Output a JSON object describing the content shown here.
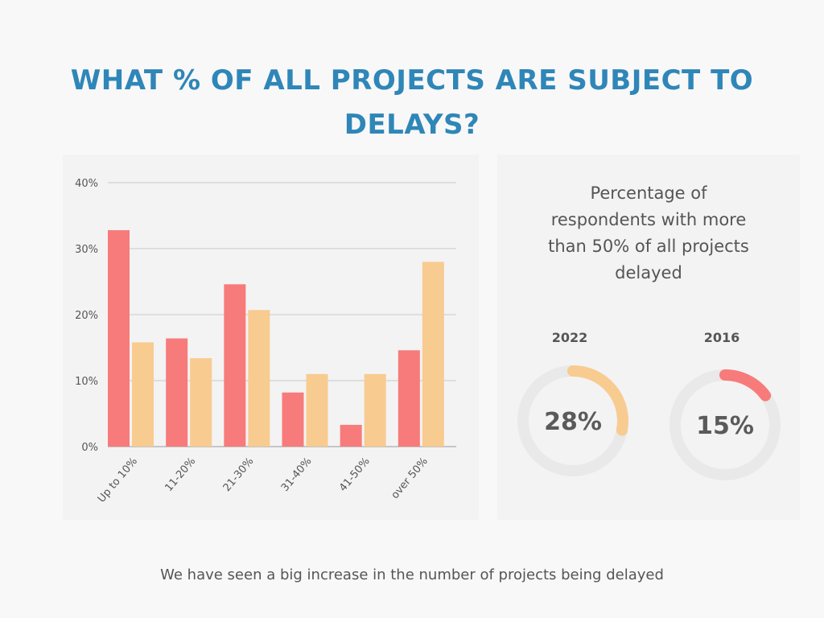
{
  "title": "What % of all projects are subject to delays?",
  "footer": "We have seen a big increase in the number of projects being delayed",
  "colors": {
    "title": "#2f86b8",
    "bar_red": "#f77b7b",
    "bar_orange": "#f8cb91",
    "ring_track": "#e9e9e9",
    "text": "#555555"
  },
  "chart_data": [
    {
      "type": "bar",
      "categories": [
        "Up to 10%",
        "11-20%",
        "21-30%",
        "31-40%",
        "41-50%",
        "over 50%"
      ],
      "series": [
        {
          "color": "#f77b7b",
          "values": [
            32.8,
            16.4,
            24.6,
            8.2,
            3.3,
            14.6
          ]
        },
        {
          "color": "#f8cb91",
          "values": [
            15.8,
            13.4,
            20.7,
            11.0,
            11.0,
            28.0
          ]
        }
      ],
      "yticks": [
        "0%",
        "10%",
        "20%",
        "30%",
        "40%"
      ],
      "ylim": [
        0,
        40
      ],
      "grid": true,
      "legend": "none"
    },
    {
      "type": "pie",
      "title": "Percentage of respondents with more than 50% of all projects delayed",
      "title_lines": [
        "Percentage of",
        "respondents with more",
        "than 50% of all projects",
        "delayed"
      ],
      "donuts": [
        {
          "year": "2022",
          "value": 28,
          "label": "28%",
          "color": "#f8cb91"
        },
        {
          "year": "2016",
          "value": 15,
          "label": "15%",
          "color": "#f77b7b"
        }
      ]
    }
  ]
}
